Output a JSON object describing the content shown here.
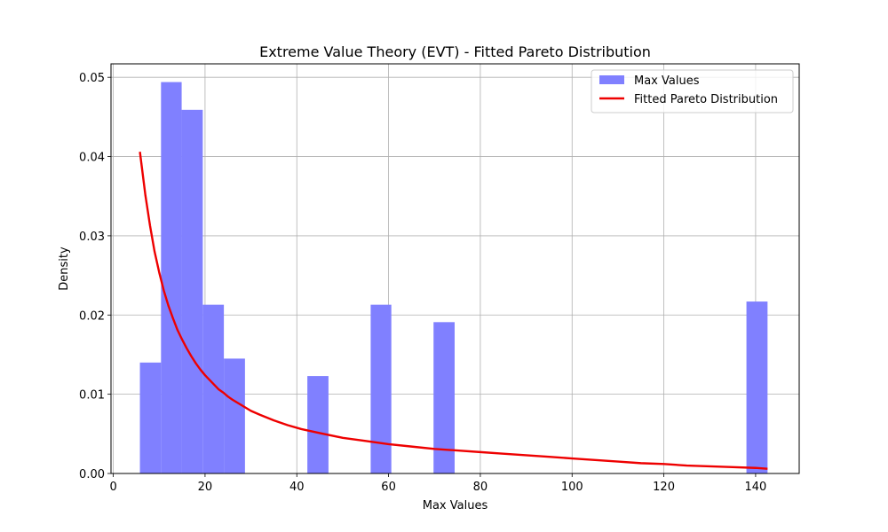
{
  "chart_data": {
    "type": "bar",
    "title": "Extreme Value Theory (EVT) - Fitted Pareto Distribution",
    "xlabel": "Max Values",
    "ylabel": "Density",
    "xlim": [
      -0.5,
      149.5
    ],
    "ylim": [
      0,
      0.0517
    ],
    "xticks": [
      0,
      20,
      40,
      60,
      80,
      100,
      120,
      140
    ],
    "yticks": [
      0.0,
      0.01,
      0.02,
      0.03,
      0.04,
      0.05
    ],
    "ytick_labels": [
      "0.00",
      "0.01",
      "0.02",
      "0.03",
      "0.04",
      "0.05"
    ],
    "grid": true,
    "legend_position": "top-right",
    "histogram": {
      "name": "Max Values",
      "color": "#8080ff",
      "bins": [
        {
          "x0": 5.8,
          "x1": 10.4,
          "density": 0.014
        },
        {
          "x0": 10.4,
          "x1": 14.9,
          "density": 0.0494
        },
        {
          "x0": 14.9,
          "x1": 19.5,
          "density": 0.0459
        },
        {
          "x0": 19.5,
          "x1": 24.1,
          "density": 0.0213
        },
        {
          "x0": 24.1,
          "x1": 28.7,
          "density": 0.0145
        },
        {
          "x0": 42.3,
          "x1": 46.9,
          "density": 0.0123
        },
        {
          "x0": 56.1,
          "x1": 60.6,
          "density": 0.0213
        },
        {
          "x0": 69.8,
          "x1": 74.4,
          "density": 0.0191
        },
        {
          "x0": 138.0,
          "x1": 142.6,
          "density": 0.0217
        }
      ]
    },
    "series": [
      {
        "name": "Fitted Pareto Distribution",
        "color": "#ee0000",
        "x": [
          5.8,
          7,
          8,
          9,
          10,
          11,
          12,
          13,
          14,
          15,
          16,
          17,
          18,
          19,
          20,
          21,
          22,
          23,
          24,
          25,
          26,
          28,
          30,
          32,
          35,
          38,
          41,
          45,
          50,
          55,
          60,
          65,
          70,
          75,
          80,
          85,
          90,
          95,
          100,
          105,
          110,
          115,
          120,
          125,
          130,
          135,
          140,
          142.6
        ],
        "y": [
          0.0406,
          0.0351,
          0.0313,
          0.028,
          0.0254,
          0.0231,
          0.0212,
          0.0196,
          0.0181,
          0.0169,
          0.0158,
          0.0148,
          0.0139,
          0.0131,
          0.0124,
          0.0118,
          0.0112,
          0.0106,
          0.0102,
          0.0097,
          0.0093,
          0.0086,
          0.0079,
          0.0074,
          0.0067,
          0.0061,
          0.0056,
          0.0051,
          0.0045,
          0.0041,
          0.0037,
          0.0034,
          0.0031,
          0.0029,
          0.0027,
          0.0025,
          0.0023,
          0.0021,
          0.0019,
          0.0017,
          0.0015,
          0.0013,
          0.0012,
          0.001,
          0.0009,
          0.0008,
          0.0007,
          0.0006
        ]
      }
    ]
  }
}
